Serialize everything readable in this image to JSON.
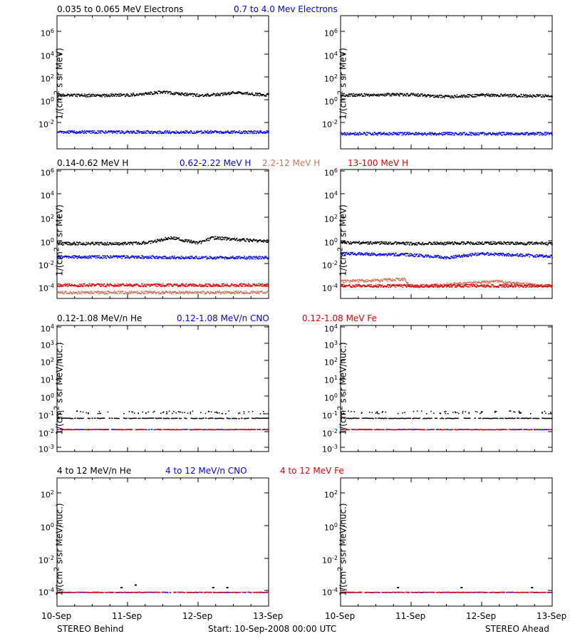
{
  "colors": {
    "black": "#000000",
    "blue": "#0000ff",
    "tan": "#c8785a",
    "red": "#e00000"
  },
  "rows": [
    {
      "legend": [
        {
          "text": "0.035 to 0.065 MeV Electrons",
          "color": "#000000"
        },
        {
          "text": "0.7 to 4.0 Mev Electrons",
          "color": "#0000ff"
        }
      ],
      "ylabel_html": "1/(cm<sup>2</sup> s sr MeV)",
      "ticks": [
        {
          "v": "10",
          "e": "6"
        },
        {
          "v": "10",
          "e": "4"
        },
        {
          "v": "10",
          "e": "2"
        },
        {
          "v": "10",
          "e": "0"
        },
        {
          "v": "10",
          "e": "-2"
        }
      ]
    },
    {
      "legend": [
        {
          "text": "0.14-0.62 MeV H",
          "color": "#000000"
        },
        {
          "text": "0.62-2.22 MeV H",
          "color": "#0000ff"
        },
        {
          "text": "2.2-12 MeV H",
          "color": "#c8785a"
        },
        {
          "text": "13-100 MeV H",
          "color": "#e00000"
        }
      ],
      "ylabel_html": "1/(cm<sup>2</sup> s sr MeV)",
      "ticks": [
        {
          "v": "10",
          "e": "6"
        },
        {
          "v": "10",
          "e": "4"
        },
        {
          "v": "10",
          "e": "2"
        },
        {
          "v": "10",
          "e": "0"
        },
        {
          "v": "10",
          "e": "-2"
        },
        {
          "v": "10",
          "e": "-4"
        }
      ]
    },
    {
      "legend": [
        {
          "text": "0.12-1.08 MeV/n He",
          "color": "#000000"
        },
        {
          "text": "0.12-1.08 MeV/n CNO",
          "color": "#0000ff"
        },
        {
          "text": "0.12-1.08 MeV Fe",
          "color": "#e00000"
        }
      ],
      "ylabel_html": "1/(cm<sup>2</sup> s sr MeV/nuc.)",
      "ticks": [
        {
          "v": "10",
          "e": "4"
        },
        {
          "v": "10",
          "e": "3"
        },
        {
          "v": "10",
          "e": "2"
        },
        {
          "v": "10",
          "e": "1"
        },
        {
          "v": "10",
          "e": "0"
        },
        {
          "v": "10",
          "e": "-1"
        },
        {
          "v": "10",
          "e": "-2"
        },
        {
          "v": "10",
          "e": "-3"
        }
      ]
    },
    {
      "legend": [
        {
          "text": "4 to 12 MeV/n He",
          "color": "#000000"
        },
        {
          "text": "4 to 12 MeV/n CNO",
          "color": "#0000ff"
        },
        {
          "text": "4 to 12 MeV Fe",
          "color": "#e00000"
        }
      ],
      "ylabel_html": "1/(cm<sup>2</sup> s sr MeV/nuc.)",
      "ticks": [
        {
          "v": "10",
          "e": "2"
        },
        {
          "v": "10",
          "e": "0"
        },
        {
          "v": "10",
          "e": "-2"
        },
        {
          "v": "10",
          "e": "-4"
        }
      ]
    }
  ],
  "x_ticks": [
    "10-Sep",
    "11-Sep",
    "12-Sep",
    "13-Sep"
  ],
  "footer": {
    "left": "STEREO Behind",
    "center": "Start: 10-Sep-2008 00:00 UTC",
    "right": "STEREO Ahead"
  },
  "chart_data": [
    {
      "panel": "STEREO Behind electrons",
      "type": "scatter",
      "log_y": true,
      "x_range": [
        "10-Sep",
        "13-Sep"
      ],
      "ylim": [
        0.001,
        10000000
      ],
      "series": [
        {
          "name": "0.035 to 0.065 MeV Electrons",
          "color": "#000000",
          "x": [
            "10-Sep",
            "10.5",
            "11-Sep",
            "11.5",
            "12-Sep",
            "12.25",
            "12.5",
            "13-Sep"
          ],
          "y": [
            12,
            11,
            12,
            20,
            11,
            13,
            18,
            12
          ]
        },
        {
          "name": "0.7 to 4.0 Mev Electrons",
          "color": "#0000ff",
          "x": [
            "10-Sep",
            "11-Sep",
            "12-Sep",
            "13-Sep"
          ],
          "y": [
            0.02,
            0.02,
            0.02,
            0.02
          ]
        }
      ]
    },
    {
      "panel": "STEREO Ahead electrons",
      "type": "scatter",
      "log_y": true,
      "x_range": [
        "10-Sep",
        "13-Sep"
      ],
      "ylim": [
        0.001,
        10000000
      ],
      "series": [
        {
          "name": "0.035 to 0.065 MeV Electrons",
          "color": "#000000",
          "x": [
            "10-Sep",
            "11-Sep",
            "11.5",
            "12-Sep",
            "13-Sep"
          ],
          "y": [
            12,
            13,
            9,
            12,
            10
          ]
        },
        {
          "name": "0.7 to 4.0 Mev Electrons",
          "color": "#0000ff",
          "x": [
            "10-Sep",
            "11-Sep",
            "12-Sep",
            "13-Sep"
          ],
          "y": [
            0.015,
            0.015,
            0.015,
            0.015
          ]
        }
      ]
    },
    {
      "panel": "STEREO Behind protons",
      "type": "scatter",
      "log_y": true,
      "x_range": [
        "10-Sep",
        "13-Sep"
      ],
      "ylim": [
        3e-05,
        1000000
      ],
      "series": [
        {
          "name": "0.14-0.62 MeV H",
          "color": "#000000",
          "x": [
            "10-Sep",
            "11-Sep",
            "11.3",
            "11.6",
            "12-Sep",
            "12.2",
            "12.6",
            "13-Sep"
          ],
          "y": [
            1.0,
            1.0,
            1.2,
            3.0,
            1.1,
            3.0,
            2.0,
            1.5
          ]
        },
        {
          "name": "0.62-2.22 MeV H",
          "color": "#0000ff",
          "x": [
            "10-Sep",
            "11-Sep",
            "12-Sep",
            "13-Sep"
          ],
          "y": [
            0.08,
            0.08,
            0.07,
            0.07
          ]
        },
        {
          "name": "2.2-12 MeV H",
          "color": "#c8785a",
          "x": [
            "10-Sep",
            "11-Sep",
            "12-Sep",
            "13-Sep"
          ],
          "y": [
            0.0001,
            0.0001,
            0.0001,
            0.0001
          ]
        },
        {
          "name": "13-100 MeV H",
          "color": "#e00000",
          "x": [
            "10-Sep",
            "11-Sep",
            "12-Sep",
            "13-Sep"
          ],
          "y": [
            0.0004,
            0.0004,
            0.0004,
            0.0004
          ]
        }
      ]
    },
    {
      "panel": "STEREO Ahead protons",
      "type": "scatter",
      "log_y": true,
      "x_range": [
        "10-Sep",
        "13-Sep"
      ],
      "ylim": [
        3e-05,
        1000000
      ],
      "series": [
        {
          "name": "0.14-0.62 MeV H",
          "color": "#000000",
          "x": [
            "10-Sep",
            "11-Sep",
            "12-Sep",
            "13-Sep"
          ],
          "y": [
            1.2,
            1.0,
            1.1,
            1.0
          ]
        },
        {
          "name": "0.62-2.22 MeV H",
          "color": "#0000ff",
          "x": [
            "10-Sep",
            "11-Sep",
            "11.5",
            "12-Sep",
            "13-Sep"
          ],
          "y": [
            0.15,
            0.12,
            0.07,
            0.15,
            0.09
          ]
        },
        {
          "name": "2.2-12 MeV H",
          "color": "#c8785a",
          "x": [
            "10-Sep",
            "10.9",
            "11-Sep",
            "12.2",
            "13-Sep"
          ],
          "y": [
            0.0008,
            0.0012,
            0.0003,
            0.0008,
            0.0003
          ]
        },
        {
          "name": "13-100 MeV H",
          "color": "#e00000",
          "x": [
            "10-Sep",
            "11-Sep",
            "12-Sep",
            "13-Sep"
          ],
          "y": [
            0.00035,
            0.00035,
            0.00035,
            0.00035
          ]
        }
      ]
    },
    {
      "panel": "STEREO Behind low-energy heavy ions",
      "type": "scatter",
      "log_y": true,
      "x_range": [
        "10-Sep",
        "13-Sep"
      ],
      "ylim": [
        0.0005,
        10000
      ],
      "series": [
        {
          "name": "0.12-1.08 MeV/n He",
          "color": "#000000",
          "x": [
            "10-Sep",
            "13-Sep"
          ],
          "y": [
            0.045,
            0.045
          ]
        },
        {
          "name": "0.12-1.08 MeV/n CNO",
          "color": "#0000ff",
          "x": [
            "10-Sep",
            "13-Sep"
          ],
          "y": [
            0.01,
            0.01
          ]
        },
        {
          "name": "0.12-1.08 MeV Fe",
          "color": "#e00000",
          "x": [
            "10-Sep",
            "13-Sep"
          ],
          "y": [
            0.01,
            0.01
          ]
        }
      ]
    },
    {
      "panel": "STEREO Ahead low-energy heavy ions",
      "type": "scatter",
      "log_y": true,
      "x_range": [
        "10-Sep",
        "13-Sep"
      ],
      "ylim": [
        0.0005,
        10000
      ],
      "series": [
        {
          "name": "0.12-1.08 MeV/n He",
          "color": "#000000",
          "x": [
            "10-Sep",
            "13-Sep"
          ],
          "y": [
            0.045,
            0.045
          ]
        },
        {
          "name": "0.12-1.08 MeV/n CNO",
          "color": "#0000ff",
          "x": [
            "10-Sep",
            "13-Sep"
          ],
          "y": [
            0.01,
            0.01
          ]
        },
        {
          "name": "0.12-1.08 MeV Fe",
          "color": "#e00000",
          "x": [
            "10-Sep",
            "13-Sep"
          ],
          "y": [
            0.01,
            0.01
          ]
        }
      ]
    },
    {
      "panel": "STEREO Behind high-energy heavy ions",
      "type": "scatter",
      "log_y": true,
      "x_range": [
        "10-Sep",
        "13-Sep"
      ],
      "ylim": [
        1e-05,
        10000
      ],
      "series": [
        {
          "name": "4 to 12 MeV/n He",
          "color": "#000000",
          "x": [
            "10.9",
            "11.1",
            "12.2",
            "12.4"
          ],
          "y": [
            0.0002,
            0.0003,
            0.0002,
            0.0002
          ]
        },
        {
          "name": "4 to 12 MeV/n CNO",
          "color": "#0000ff",
          "x": [
            "10-Sep",
            "13-Sep"
          ],
          "y": [
            0.0001,
            0.0001
          ]
        },
        {
          "name": "4 to 12 MeV Fe",
          "color": "#e00000",
          "x": [
            "10-Sep",
            "13-Sep"
          ],
          "y": [
            0.0001,
            0.0001
          ]
        }
      ]
    },
    {
      "panel": "STEREO Ahead high-energy heavy ions",
      "type": "scatter",
      "log_y": true,
      "x_range": [
        "10-Sep",
        "13-Sep"
      ],
      "ylim": [
        1e-05,
        10000
      ],
      "series": [
        {
          "name": "4 to 12 MeV/n He",
          "color": "#000000",
          "x": [
            "10.8",
            "11.7",
            "12.7"
          ],
          "y": [
            0.0002,
            0.0002,
            0.0002
          ]
        },
        {
          "name": "4 to 12 MeV/n CNO",
          "color": "#0000ff",
          "x": [
            "10-Sep",
            "13-Sep"
          ],
          "y": [
            0.0001,
            0.0001
          ]
        },
        {
          "name": "4 to 12 MeV Fe",
          "color": "#e00000",
          "x": [
            "10-Sep",
            "13-Sep"
          ],
          "y": [
            0.0001,
            0.0001
          ]
        }
      ]
    }
  ]
}
